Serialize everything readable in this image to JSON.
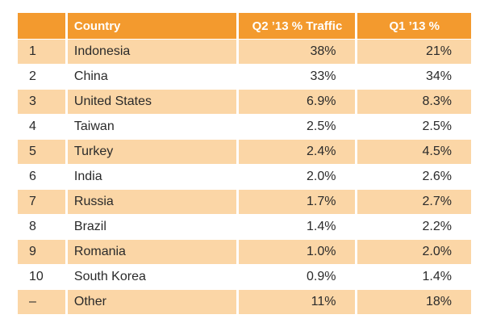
{
  "chart_data": {
    "type": "table",
    "columns": [
      "",
      "Country",
      "Q2 ’13 % Traffic",
      "Q1 ’13 %"
    ],
    "rows": [
      {
        "rank": "1",
        "country": "Indonesia",
        "q2": "38%",
        "q1": "21%"
      },
      {
        "rank": "2",
        "country": "China",
        "q2": "33%",
        "q1": "34%"
      },
      {
        "rank": "3",
        "country": "United States",
        "q2": "6.9%",
        "q1": "8.3%"
      },
      {
        "rank": "4",
        "country": "Taiwan",
        "q2": "2.5%",
        "q1": "2.5%"
      },
      {
        "rank": "5",
        "country": "Turkey",
        "q2": "2.4%",
        "q1": "4.5%"
      },
      {
        "rank": "6",
        "country": "India",
        "q2": "2.0%",
        "q1": "2.6%"
      },
      {
        "rank": "7",
        "country": "Russia",
        "q2": "1.7%",
        "q1": "2.7%"
      },
      {
        "rank": "8",
        "country": "Brazil",
        "q2": "1.4%",
        "q1": "2.2%"
      },
      {
        "rank": "9",
        "country": "Romania",
        "q2": "1.0%",
        "q1": "2.0%"
      },
      {
        "rank": "10",
        "country": "South Korea",
        "q2": "0.9%",
        "q1": "1.4%"
      },
      {
        "rank": "–",
        "country": "Other",
        "q2": "11%",
        "q1": "18%"
      }
    ],
    "colors": {
      "header": "#f39a2e",
      "band": "#fbd6a6"
    }
  }
}
